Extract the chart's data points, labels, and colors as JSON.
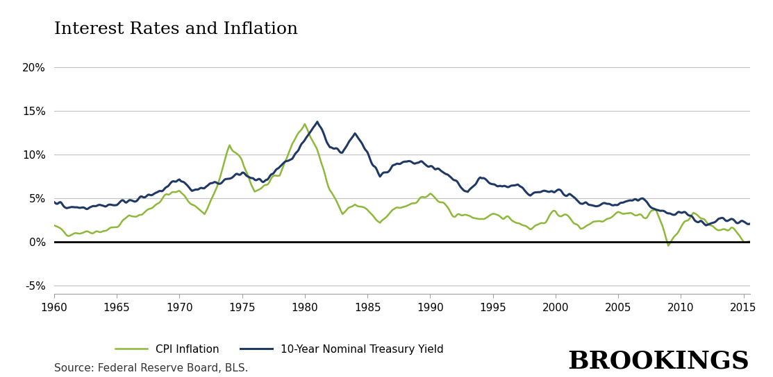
{
  "title": "Interest Rates and Inflation",
  "source_text": "Source: Federal Reserve Board, BLS.",
  "brookings_text": "BROOKINGS",
  "legend_cpi": "CPI Inflation",
  "legend_treasury": "10-Year Nominal Treasury Yield",
  "cpi_color": "#8db83a",
  "treasury_color": "#1f3864",
  "zero_line_color": "#000000",
  "grid_color": "#c0c0c0",
  "background_color": "#ffffff",
  "xlim": [
    1960,
    2015.5
  ],
  "ylim": [
    -0.06,
    0.225
  ],
  "yticks": [
    -0.05,
    0.0,
    0.05,
    0.1,
    0.15,
    0.2
  ],
  "ytick_labels": [
    "-5%",
    "0%",
    "5%",
    "10%",
    "15%",
    "20%"
  ],
  "xticks": [
    1960,
    1965,
    1970,
    1975,
    1980,
    1985,
    1990,
    1995,
    2000,
    2005,
    2010,
    2015
  ],
  "title_fontsize": 18,
  "label_fontsize": 11,
  "legend_fontsize": 11,
  "source_fontsize": 11,
  "brookings_fontsize": 26
}
